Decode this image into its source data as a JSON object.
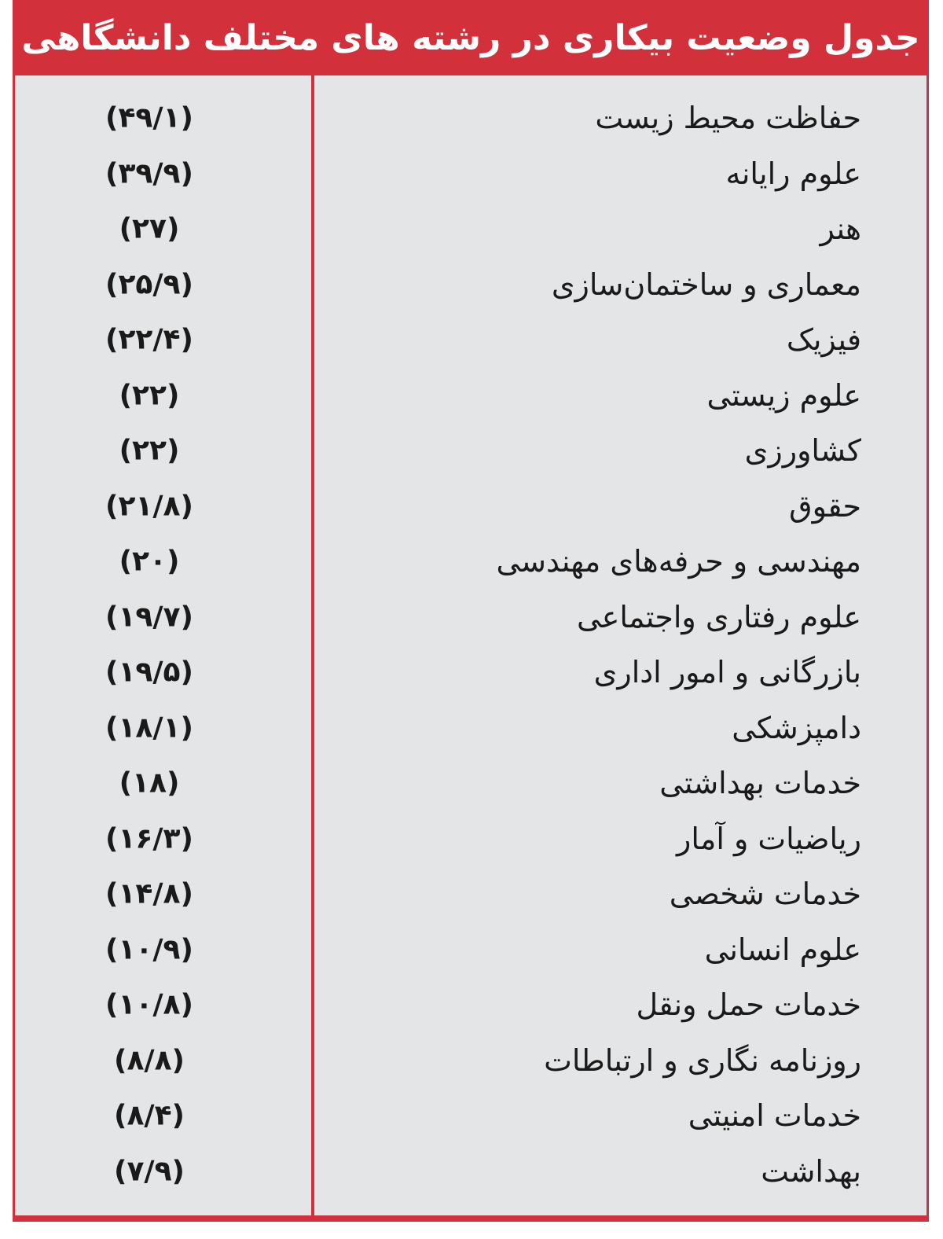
{
  "table": {
    "title": "جدول وضعیت بیکاری در رشته های مختلف دانشگاهی",
    "rows": [
      [
        "حفاظت محیط زیست",
        "(۴۹/۱)"
      ],
      [
        "علوم رایانه",
        "(۳۹/۹)"
      ],
      [
        "هنر",
        "(۲۷)"
      ],
      [
        "معماری و ساختمان‌سازی",
        "(۲۵/۹)"
      ],
      [
        "فیزیک",
        "(۲۲/۴)"
      ],
      [
        "علوم زیستی",
        "(۲۲)"
      ],
      [
        "کشاورزی",
        "(۲۲)"
      ],
      [
        "حقوق",
        "(۲۱/۸)"
      ],
      [
        "مهندسی و حرفه‌های مهندسی",
        "(۲۰)"
      ],
      [
        "علوم رفتاری واجتماعی",
        "(۱۹/۷)"
      ],
      [
        "بازرگانی و امور اداری",
        "(۱۹/۵)"
      ],
      [
        "دامپزشکی",
        "(۱۸/۱)"
      ],
      [
        "خدمات بهداشتی",
        "(۱۸)"
      ],
      [
        "ریاضیات و آمار",
        "(۱۶/۳)"
      ],
      [
        "خدمات شخصی",
        "(۱۴/۸)"
      ],
      [
        "علوم انسانی",
        "(۱۰/۹)"
      ],
      [
        "خدمات حمل ونقل",
        "(۱۰/۸)"
      ],
      [
        "روزنامه نگاری و ارتباطات",
        "(۸/۸)"
      ],
      [
        "خدمات امنیتی",
        "(۸/۴)"
      ],
      [
        "بهداشت",
        "(۷/۹)"
      ]
    ]
  }
}
